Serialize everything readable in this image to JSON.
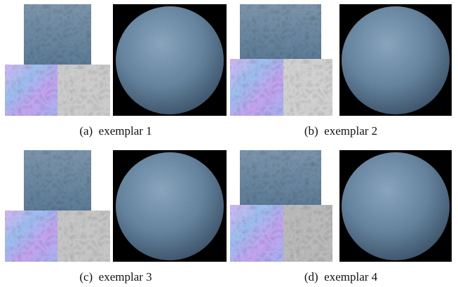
{
  "panels": [
    {
      "caption": "(a)  exemplar 1"
    },
    {
      "caption": "(b)  exemplar 2"
    },
    {
      "caption": "(c)  exemplar 3"
    },
    {
      "caption": "(d)  exemplar 4"
    }
  ],
  "colors": {
    "photo_blue": "#6d88a2",
    "sphere_blue": "#6b8aa6",
    "normal_map": "#b9a8f0",
    "height_map": "#c7c7c7",
    "background": "#000000"
  }
}
